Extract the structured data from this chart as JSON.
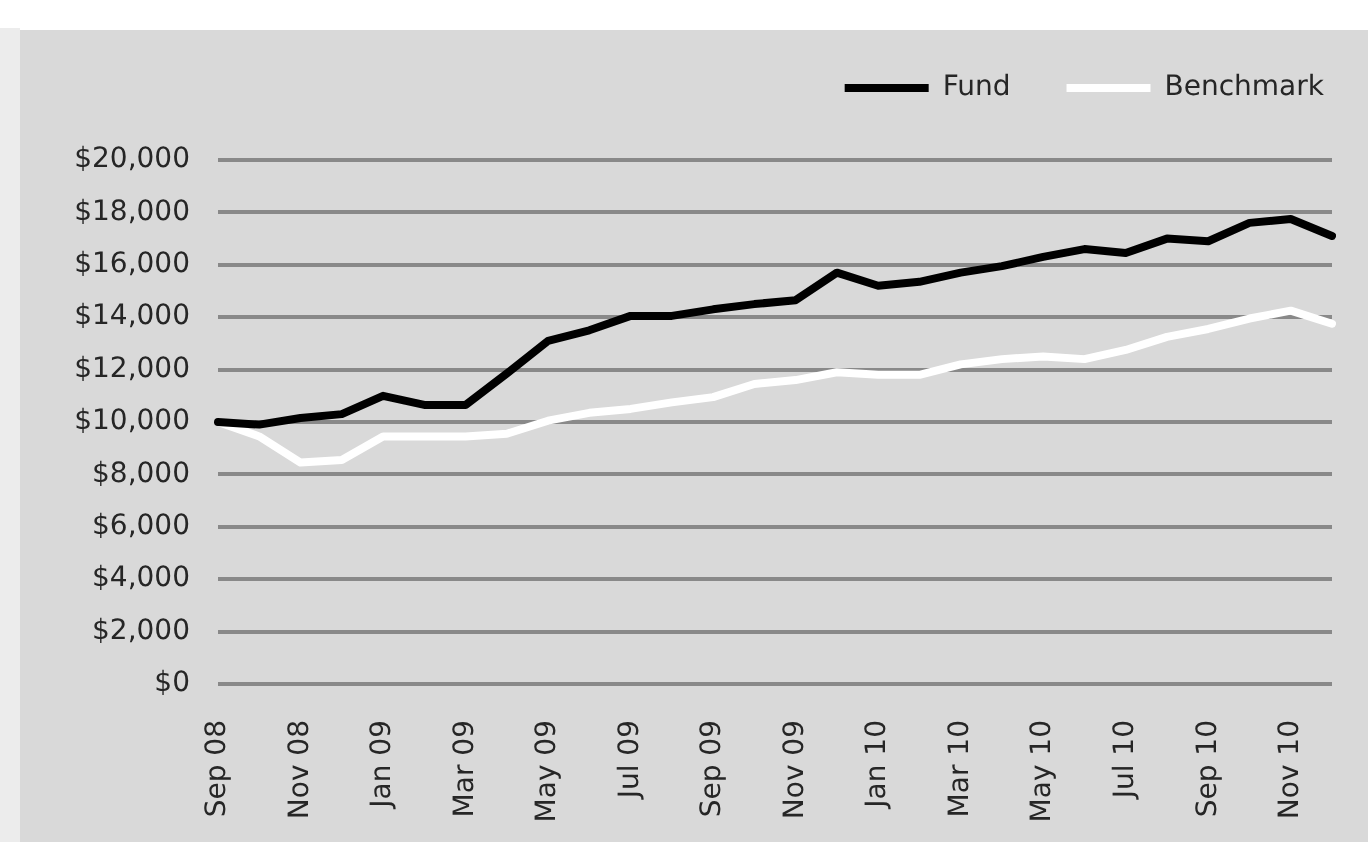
{
  "chart_data": {
    "type": "line",
    "categories": [
      "Sep 08",
      null,
      "Nov 08",
      null,
      "Jan 09",
      null,
      "Mar 09",
      null,
      "May 09",
      null,
      "Jul 09",
      null,
      "Sep 09",
      null,
      "Nov 09",
      null,
      "Jan 10",
      null,
      "Mar 10",
      null,
      "May 10",
      null,
      "Jul 10",
      null,
      "Sep 10",
      null,
      "Nov 10",
      null
    ],
    "series": [
      {
        "name": "Fund",
        "color": "#000000",
        "values": [
          10000,
          9900,
          10150,
          10300,
          11000,
          10650,
          10650,
          11850,
          13100,
          13500,
          14050,
          14050,
          14300,
          14500,
          14650,
          15700,
          15200,
          15350,
          15700,
          15950,
          16300,
          16600,
          16450,
          17000,
          16900,
          17600,
          17750,
          17100
        ]
      },
      {
        "name": "Benchmark",
        "color": "#ffffff",
        "values": [
          10000,
          9450,
          8450,
          8550,
          9450,
          9450,
          9450,
          9550,
          10050,
          10350,
          10500,
          10750,
          10950,
          11450,
          11600,
          11900,
          11800,
          11800,
          12200,
          12400,
          12500,
          12400,
          12750,
          13250,
          13550,
          13950,
          14250,
          13750
        ]
      }
    ],
    "ylim": [
      0,
      20000
    ],
    "yticks": [
      {
        "value": 0,
        "label": "$0"
      },
      {
        "value": 2000,
        "label": "$2,000"
      },
      {
        "value": 4000,
        "label": "$4,000"
      },
      {
        "value": 6000,
        "label": "$6,000"
      },
      {
        "value": 8000,
        "label": "$8,000"
      },
      {
        "value": 10000,
        "label": "$10,000"
      },
      {
        "value": 12000,
        "label": "$12,000"
      },
      {
        "value": 14000,
        "label": "$14,000"
      },
      {
        "value": 16000,
        "label": "$16,000"
      },
      {
        "value": 18000,
        "label": "$18,000"
      },
      {
        "value": 20000,
        "label": "$20,000"
      }
    ],
    "grid": "y",
    "legend": "top right",
    "marker": "none"
  }
}
